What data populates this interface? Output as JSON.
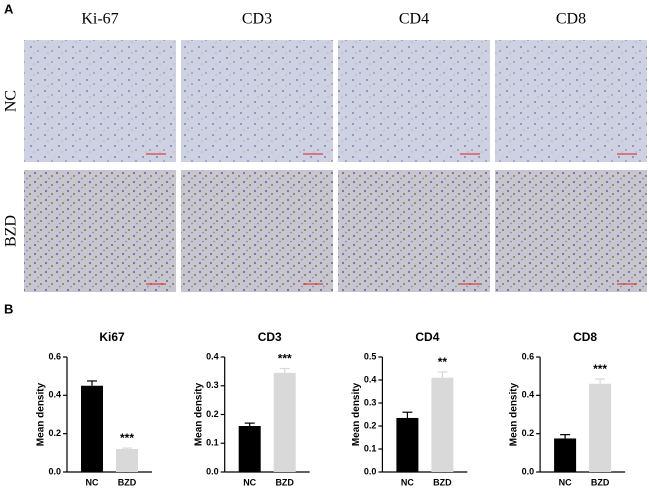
{
  "panel_a": {
    "label": "A",
    "columns": [
      "Ki-67",
      "CD3",
      "CD4",
      "CD8"
    ],
    "rows": [
      "NC",
      "BZD"
    ]
  },
  "panel_b": {
    "label": "B"
  },
  "chart_data": [
    {
      "type": "bar",
      "title": "Ki67",
      "ylabel": "Mean density",
      "categories": [
        "NC",
        "BZD"
      ],
      "values": [
        0.45,
        0.12
      ],
      "errors": [
        0.025,
        0.005
      ],
      "annotations": [
        null,
        "***"
      ],
      "colors": [
        "#000000",
        "#d9d9d9"
      ],
      "ylim": [
        0,
        0.6
      ],
      "yticks": [
        {
          "value": 0,
          "label": "0.0"
        },
        0.2,
        0.4,
        0.6
      ]
    },
    {
      "type": "bar",
      "title": "CD3",
      "ylabel": "Mean density",
      "categories": [
        "NC",
        "BZD"
      ],
      "values": [
        0.16,
        0.345
      ],
      "errors": [
        0.01,
        0.015
      ],
      "annotations": [
        null,
        "***"
      ],
      "colors": [
        "#000000",
        "#d9d9d9"
      ],
      "ylim": [
        0,
        0.4
      ],
      "yticks": [
        {
          "value": 0,
          "label": "0.0"
        },
        0.1,
        0.2,
        0.3,
        0.4
      ]
    },
    {
      "type": "bar",
      "title": "CD4",
      "ylabel": "Mean density",
      "categories": [
        "NC",
        "BZD"
      ],
      "values": [
        0.235,
        0.41
      ],
      "errors": [
        0.025,
        0.025
      ],
      "annotations": [
        null,
        "**"
      ],
      "colors": [
        "#000000",
        "#d9d9d9"
      ],
      "ylim": [
        0,
        0.5
      ],
      "yticks": [
        {
          "value": 0,
          "label": "0.0"
        },
        0.1,
        0.2,
        0.3,
        0.4,
        0.5
      ]
    },
    {
      "type": "bar",
      "title": "CD8",
      "ylabel": "Mean density",
      "categories": [
        "NC",
        "BZD"
      ],
      "values": [
        0.175,
        0.46
      ],
      "errors": [
        0.02,
        0.025
      ],
      "annotations": [
        null,
        "***"
      ],
      "colors": [
        "#000000",
        "#d9d9d9"
      ],
      "ylim": [
        0,
        0.6
      ],
      "yticks": [
        {
          "value": 0,
          "label": "0.0"
        },
        0.2,
        0.4,
        0.6
      ]
    }
  ]
}
